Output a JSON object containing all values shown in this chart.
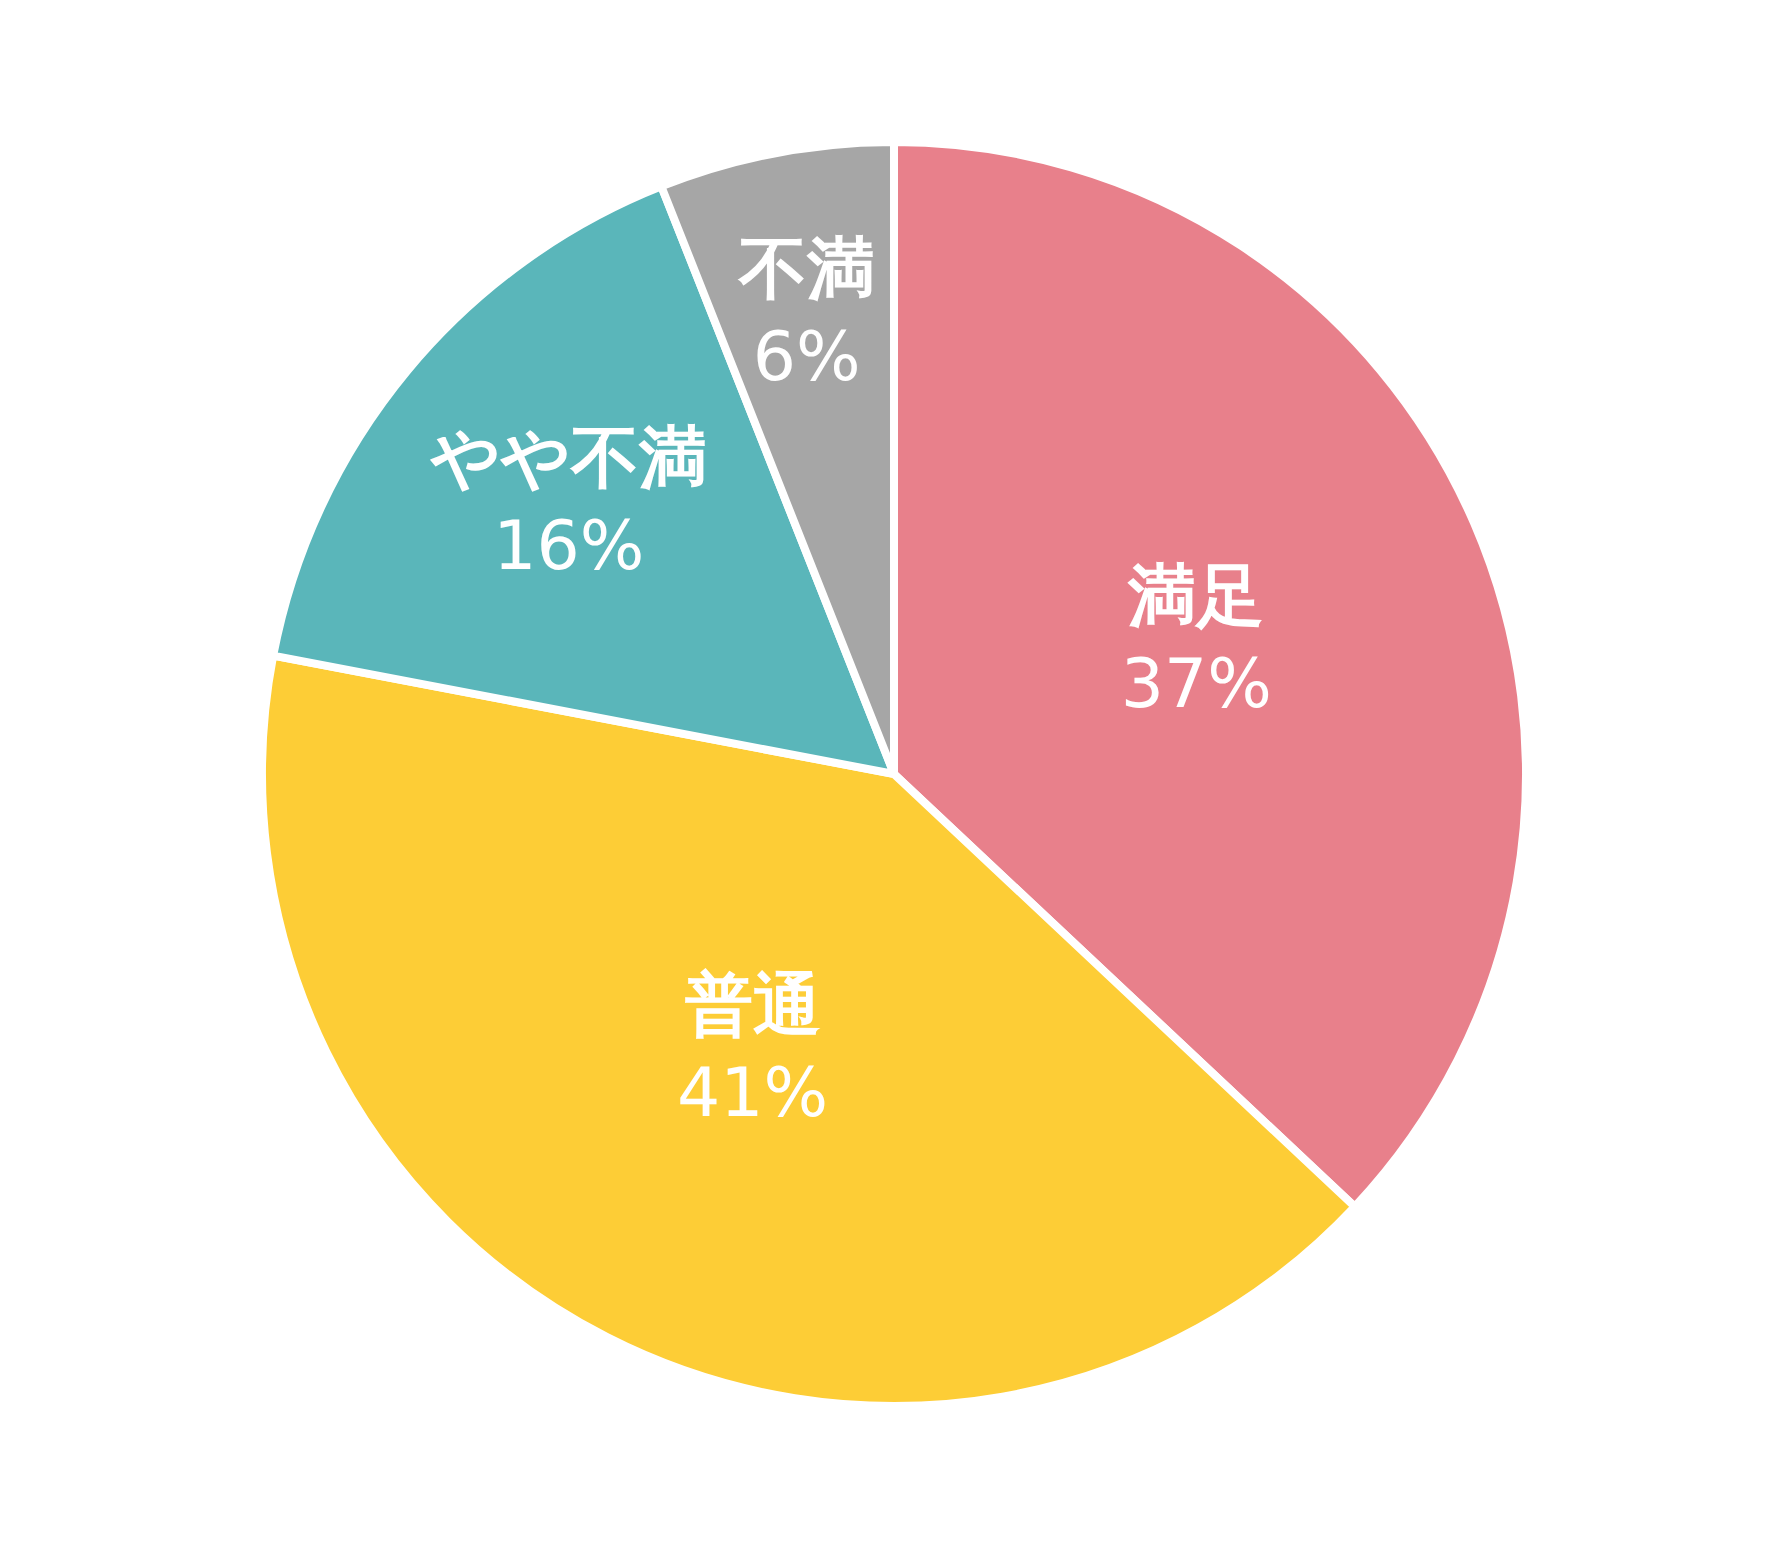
{
  "chart_data": {
    "type": "pie",
    "categories": [
      "満足",
      "普通",
      "やや不満",
      "不満"
    ],
    "values": [
      37,
      41,
      16,
      6
    ],
    "value_labels": [
      "37%",
      "41%",
      "16%",
      "6%"
    ],
    "colors": [
      "#e8808b",
      "#fdcd36",
      "#5ab6ba",
      "#a6a6a6"
    ]
  }
}
